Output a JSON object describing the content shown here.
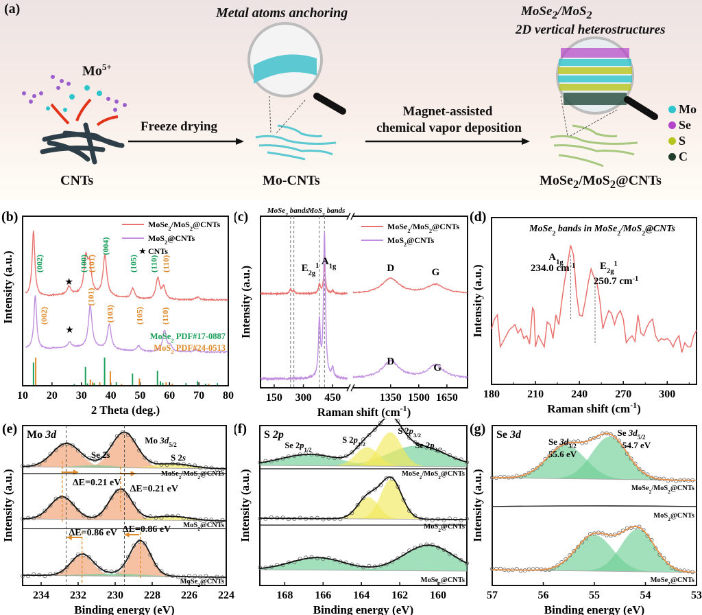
{
  "panel_a": {
    "label": "(a)",
    "step1_title": "Metal atoms anchoring",
    "step2_title_line1": "MoSe2/MoS2",
    "step2_title_line2": "2D vertical heterostructures",
    "ion_label": "Mo5+",
    "arrow1_label": "Freeze drying",
    "arrow2_label_line1": "Magnet-assisted",
    "arrow2_label_line2": "chemical vapor deposition",
    "stage_labels": [
      "CNTs",
      "Mo-CNTs",
      "MoSe2/MoS2@CNTs"
    ],
    "legend": [
      {
        "label": "Mo",
        "color": "#2ec4cc"
      },
      {
        "label": "Se",
        "color": "#b545c8"
      },
      {
        "label": "S",
        "color": "#b8c41e"
      },
      {
        "label": "C",
        "color": "#1f3d2c"
      }
    ],
    "colors": {
      "cnt": "#2d3e48",
      "mo_cnt": "#5cc8d2",
      "hetero_cnt": "#a8c880",
      "arrow_red": "#e2341b"
    }
  },
  "chart_data": [
    {
      "id": "b",
      "panel_label": "(b)",
      "type": "line",
      "xlabel": "2 Theta (deg.)",
      "ylabel": "Intensity (a.u.)",
      "xlim": [
        10,
        80
      ],
      "xticks": [
        10,
        20,
        30,
        40,
        50,
        60,
        70,
        80
      ],
      "legend_position": "top-right",
      "series": [
        {
          "name": "MoSe2/MoS2@CNTs",
          "color": "#e8716d",
          "peaks": [
            [
              13.7,
              1.0
            ],
            [
              25.8,
              0.12
            ],
            [
              31.5,
              0.52
            ],
            [
              32.8,
              0.42
            ],
            [
              38.0,
              0.62
            ],
            [
              47.5,
              0.15
            ],
            [
              56.0,
              0.32
            ],
            [
              58.0,
              0.18
            ],
            [
              69.5,
              0.04
            ]
          ]
        },
        {
          "name": "MoS2@CNTs",
          "color": "#c08fe0",
          "peaks": [
            [
              14.3,
              0.95
            ],
            [
              26.0,
              0.1
            ],
            [
              33.0,
              0.75
            ],
            [
              39.5,
              0.45
            ],
            [
              49.5,
              0.1
            ],
            [
              58.3,
              0.38
            ],
            [
              60.2,
              0.1
            ],
            [
              69.0,
              0.04
            ]
          ]
        }
      ],
      "cnt_marker": {
        "label": "CNTs",
        "symbol": "★",
        "x": 25.8
      },
      "annotations": [
        {
          "text": "(002)",
          "x": 15.5,
          "series": 0,
          "color": "#1aa05a"
        },
        {
          "text": "(100)",
          "x": 30.5,
          "series": 0,
          "color": "#1aa05a"
        },
        {
          "text": "(101)",
          "x": 33.2,
          "series": 0,
          "color": "#e08a2a"
        },
        {
          "text": "(004)",
          "x": 38.0,
          "series": 0,
          "color": "#1aa05a"
        },
        {
          "text": "(105)",
          "x": 47.5,
          "series": 0,
          "color": "#1aa05a"
        },
        {
          "text": "(110)",
          "x": 54.5,
          "series": 0,
          "color": "#1aa05a"
        },
        {
          "text": "(110)",
          "x": 58.5,
          "series": 0,
          "color": "#e08a2a"
        },
        {
          "text": "(002)",
          "x": 17.0,
          "series": 1,
          "color": "#e08a2a"
        },
        {
          "text": "(101)",
          "x": 33.0,
          "series": 1,
          "color": "#e08a2a"
        },
        {
          "text": "(103)",
          "x": 39.5,
          "series": 1,
          "color": "#e08a2a"
        },
        {
          "text": "(105)",
          "x": 49.5,
          "series": 1,
          "color": "#e08a2a"
        },
        {
          "text": "(110)",
          "x": 58.3,
          "series": 1,
          "color": "#e08a2a"
        }
      ],
      "references": [
        {
          "name": "MoSe2 PDF#17-0887",
          "color": "#1aa05a",
          "lines": [
            [
              13.7,
              0.82
            ],
            [
              27.6,
              0.04
            ],
            [
              31.4,
              0.66
            ],
            [
              32.1,
              0.06
            ],
            [
              34.4,
              0.07
            ],
            [
              37.9,
              1.0
            ],
            [
              41.9,
              0.1
            ],
            [
              47.4,
              0.42
            ],
            [
              55.9,
              0.52
            ],
            [
              56.9,
              0.14
            ],
            [
              57.7,
              0.08
            ],
            [
              65.6,
              0.07
            ],
            [
              69.5,
              0.14
            ],
            [
              72.3,
              0.05
            ],
            [
              76.3,
              0.07
            ]
          ]
        },
        {
          "name": "MoS2 PDF#24-0513",
          "color": "#e08a2a",
          "lines": [
            [
              14.1,
              1.0
            ],
            [
              32.7,
              0.2
            ],
            [
              33.5,
              0.1
            ],
            [
              35.9,
              0.1
            ],
            [
              39.5,
              0.5
            ],
            [
              43.3,
              0.04
            ],
            [
              49.4,
              0.24
            ],
            [
              58.5,
              0.1
            ],
            [
              60.6,
              0.05
            ],
            [
              73.0,
              0.05
            ]
          ]
        }
      ]
    },
    {
      "id": "c",
      "panel_label": "(c)",
      "type": "line",
      "xlabel": "Raman shift (cm-1)",
      "ylabel": "Intensity (a.u.)",
      "axis_break": true,
      "xlim_left": [
        80,
        530
      ],
      "xlim_right": [
        1150,
        1760
      ],
      "xticks": [
        150,
        300,
        450,
        1350,
        1500,
        1650
      ],
      "legend_position": "top-right",
      "band_labels": [
        "MoSe2 bands",
        "MoS2 bands"
      ],
      "dashed_lines_x": [
        234,
        251,
        382,
        408
      ],
      "series": [
        {
          "name": "MoSe2/MoS2@CNTs",
          "color": "#e8716d",
          "peaks": [
            [
              234,
              0.05
            ],
            [
              251,
              0.03
            ],
            [
              382,
              0.1
            ],
            [
              408,
              0.3
            ],
            [
              450,
              0.03
            ],
            [
              1350,
              0.17
            ],
            [
              1590,
              0.1
            ]
          ]
        },
        {
          "name": "MoS2@CNTs",
          "color": "#c08fe0",
          "peaks": [
            [
              382,
              0.38
            ],
            [
              408,
              1.0
            ],
            [
              450,
              0.07
            ],
            [
              1350,
              0.12
            ],
            [
              1590,
              0.09
            ]
          ]
        }
      ],
      "annotations": [
        {
          "text": "E2g1",
          "x": 340,
          "series": 0
        },
        {
          "text": "A1g",
          "x": 430,
          "series": 0
        },
        {
          "text": "D",
          "x": 1350,
          "series": 0
        },
        {
          "text": "G",
          "x": 1590,
          "series": 0
        },
        {
          "text": "D",
          "x": 1350,
          "series": 1
        },
        {
          "text": "G",
          "x": 1600,
          "series": 1
        }
      ]
    },
    {
      "id": "d",
      "panel_label": "(d)",
      "type": "line",
      "title": "MoSe2 bands in MoSe2/MoS2@CNTs",
      "xlabel": "Raman shift (cm-1)",
      "ylabel": "Intensity (a.u.)",
      "xlim": [
        180,
        320
      ],
      "xticks": [
        180,
        210,
        240,
        270,
        300
      ],
      "series": [
        {
          "name": "MoSe2/MoS2@CNTs",
          "color": "#e8716d",
          "x": [
            180,
            182,
            184,
            186,
            188,
            190,
            192,
            194,
            196,
            198,
            200,
            202,
            204,
            206,
            208,
            209,
            210,
            212,
            214,
            216,
            218,
            220,
            222,
            224,
            226,
            228,
            230,
            232,
            234,
            236,
            238,
            240,
            242,
            244,
            246,
            248,
            250,
            252,
            254,
            256,
            258,
            260,
            262,
            264,
            266,
            268,
            270,
            272,
            274,
            276,
            278,
            280,
            282,
            284,
            286,
            288,
            290,
            292,
            294,
            296,
            298,
            300,
            302,
            304,
            306,
            308,
            310,
            312,
            314,
            316,
            318,
            320
          ],
          "y": [
            0.35,
            0.42,
            0.45,
            0.22,
            0.26,
            0.3,
            0.34,
            0.36,
            0.38,
            0.32,
            0.35,
            0.28,
            0.3,
            0.24,
            0.5,
            0.48,
            0.22,
            0.3,
            0.26,
            0.22,
            0.4,
            0.38,
            0.28,
            0.45,
            0.38,
            0.55,
            0.7,
            0.82,
            0.95,
            0.88,
            0.6,
            0.45,
            0.44,
            0.55,
            0.68,
            0.78,
            0.72,
            0.68,
            0.55,
            0.35,
            0.42,
            0.48,
            0.46,
            0.38,
            0.45,
            0.48,
            0.42,
            0.25,
            0.28,
            0.3,
            0.26,
            0.45,
            0.32,
            0.3,
            0.36,
            0.4,
            0.42,
            0.3,
            0.26,
            0.28,
            0.27,
            0.28,
            0.26,
            0.22,
            0.27,
            0.3,
            0.18,
            0.25,
            0.22,
            0.22,
            0.3,
            0.34
          ]
        }
      ],
      "annotations": [
        {
          "text": "A1g",
          "value": "234.0 cm-1",
          "x": 234.0
        },
        {
          "text": "E2g1",
          "value": "250.7 cm-1",
          "x": 250.7
        }
      ]
    },
    {
      "id": "e",
      "panel_label": "(e)",
      "type": "line",
      "title": "Mo 3d",
      "xlabel": "Binding energy (eV)",
      "ylabel": "Intensity (a.u.)",
      "xlim": [
        235,
        224
      ],
      "xticks": [
        234,
        232,
        230,
        228,
        226,
        224
      ],
      "series": [
        {
          "name": "MoSe2/MoS2@CNTs",
          "fit_color": "#f0a070",
          "peaks": [
            [
              232.65,
              0.52,
              0.75
            ],
            [
              229.5,
              0.78,
              0.68
            ],
            [
              231.0,
              0.05,
              1.0,
              "#6fcf97"
            ],
            [
              226.9,
              0.1,
              1.0,
              "#f2ea5c"
            ]
          ]
        },
        {
          "name": "MoS2@CNTs",
          "fit_color": "#f0a070",
          "peaks": [
            [
              232.86,
              0.55,
              0.65
            ],
            [
              229.71,
              0.75,
              0.6
            ],
            [
              227.0,
              0.1,
              1.0,
              "#f2ea5c"
            ]
          ]
        },
        {
          "name": "MoSe2@CNTs",
          "fit_color": "#f0a070",
          "peaks": [
            [
              231.79,
              0.48,
              0.6
            ],
            [
              228.64,
              0.8,
              0.55
            ],
            [
              230.0,
              0.06,
              1.6,
              "#6fcf97"
            ]
          ]
        }
      ],
      "dashed_lines_x": [
        232.65,
        229.5
      ],
      "labels": [
        "Se 2s",
        "Mo 3d5/2",
        "S 2s"
      ],
      "shifts": [
        {
          "text": "ΔE=0.21 eV",
          "from": 232.86,
          "to": 232.65
        },
        {
          "text": "ΔE=0.21 eV",
          "from": 229.71,
          "to": 229.5
        },
        {
          "text": "ΔE=0.86 eV",
          "from": 231.79,
          "to": 232.65
        },
        {
          "text": "ΔE=0.86 eV",
          "from": 228.64,
          "to": 229.5
        }
      ]
    },
    {
      "id": "f",
      "panel_label": "(f)",
      "type": "line",
      "title": "S 2p",
      "xlabel": "Binding energy (eV)",
      "ylabel": "Intensity (a.u.)",
      "xlim": [
        169.3,
        158.5
      ],
      "xticks": [
        168,
        166,
        164,
        162,
        160
      ],
      "series": [
        {
          "name": "MoSe2/MoS2@CNTs",
          "peaks": [
            [
              166.7,
              0.3,
              1.5,
              "#6fcf97"
            ],
            [
              161.1,
              0.55,
              1.5,
              "#6fcf97"
            ],
            [
              163.7,
              0.5,
              0.6,
              "#f2ea5c"
            ],
            [
              162.5,
              0.9,
              0.6,
              "#f2ea5c"
            ]
          ]
        },
        {
          "name": "MoS2@CNTs",
          "peaks": [
            [
              163.65,
              0.55,
              0.55,
              "#f2ea5c"
            ],
            [
              162.45,
              1.0,
              0.55,
              "#f2ea5c"
            ]
          ]
        },
        {
          "name": "MoSe2@CNTs",
          "peaks": [
            [
              166.3,
              0.35,
              1.4,
              "#6fcf97"
            ],
            [
              160.5,
              0.72,
              1.3,
              "#6fcf97"
            ]
          ]
        }
      ],
      "labels": [
        "Se 2p1/2",
        "S 2p1/2",
        "S 2p3/2",
        "Se 2p3/2"
      ]
    },
    {
      "id": "g",
      "panel_label": "(g)",
      "type": "line",
      "title": "Se 3d",
      "xlabel": "Binding energy (eV)",
      "ylabel": "Intensity (a.u.)",
      "xlim": [
        57,
        53
      ],
      "xticks": [
        57,
        56,
        55,
        54,
        53
      ],
      "series": [
        {
          "name": "MoSe2/MoS2@CNTs",
          "peaks": [
            [
              55.55,
              0.78,
              0.38
            ],
            [
              54.7,
              1.0,
              0.35
            ]
          ]
        },
        {
          "name": "MoS2@CNTs",
          "peaks": []
        },
        {
          "name": "MoSe2@CNTs",
          "peaks": [
            [
              55.0,
              0.85,
              0.36
            ],
            [
              54.15,
              1.0,
              0.33
            ]
          ]
        }
      ],
      "annotations": [
        {
          "text": "Se 3d3/2",
          "value": "55.6 eV"
        },
        {
          "text": "Se 3d5/2",
          "value": "54.7 eV"
        }
      ],
      "fit_color": "#e8914a",
      "peak_fill": "#6fcf97"
    }
  ]
}
